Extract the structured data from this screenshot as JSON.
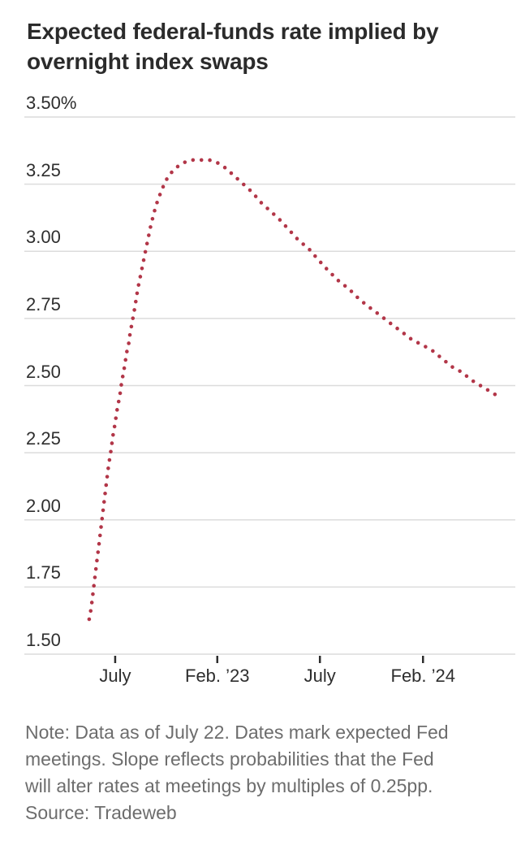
{
  "title": {
    "line1": "Expected federal-funds rate implied by",
    "line2": "overnight index swaps",
    "full": "Expected federal-funds rate implied by overnight index swaps"
  },
  "note": {
    "lines": [
      "Note: Data as of July 22. Dates mark expected Fed",
      "meetings. Slope reflects probabilities that the Fed",
      "will alter rates at meetings by multiples of 0.25pp."
    ],
    "source": "Source: Tradeweb"
  },
  "colors": {
    "background": "#ffffff",
    "line": "#b23648",
    "grid": "#dcdcdc",
    "tick": "#2e2e2e",
    "title_text": "#2b2b2b",
    "axis_text": "#2e2e2e",
    "note_text": "#6d6d6d"
  },
  "chart_data": {
    "type": "line",
    "style": "dotted",
    "title": "Expected federal-funds rate implied by overnight index swaps",
    "xlabel": "",
    "ylabel": "%",
    "ylim": [
      1.5,
      3.5
    ],
    "grid": true,
    "legend": "none",
    "y_ticks": [
      {
        "value": 3.5,
        "label": "3.50%"
      },
      {
        "value": 3.25,
        "label": "3.25"
      },
      {
        "value": 3.0,
        "label": "3.00"
      },
      {
        "value": 2.75,
        "label": "2.75"
      },
      {
        "value": 2.5,
        "label": "2.50"
      },
      {
        "value": 2.25,
        "label": "2.25"
      },
      {
        "value": 2.0,
        "label": "2.00"
      },
      {
        "value": 1.75,
        "label": "1.75"
      },
      {
        "value": 1.5,
        "label": "1.50"
      }
    ],
    "x_ticks": [
      {
        "f": 0.185,
        "label": "July"
      },
      {
        "f": 0.393,
        "label": "Feb. ’23"
      },
      {
        "f": 0.602,
        "label": "July"
      },
      {
        "f": 0.812,
        "label": "Feb. ’24"
      }
    ],
    "series": [
      {
        "name": "Expected federal-funds rate (%)",
        "color": "#b23648",
        "start_value": 1.63,
        "peak_value": 3.34,
        "end_value": 2.46,
        "points": [
          [
            0.132,
            1.63
          ],
          [
            0.136,
            1.67
          ],
          [
            0.138,
            1.7
          ],
          [
            0.14,
            1.73
          ],
          [
            0.142,
            1.76
          ],
          [
            0.144,
            1.79
          ],
          [
            0.146,
            1.82
          ],
          [
            0.148,
            1.85
          ],
          [
            0.15,
            1.88
          ],
          [
            0.152,
            1.91
          ],
          [
            0.154,
            1.94
          ],
          [
            0.156,
            1.97
          ],
          [
            0.158,
            2.0
          ],
          [
            0.16,
            2.03
          ],
          [
            0.162,
            2.06
          ],
          [
            0.164,
            2.09
          ],
          [
            0.166,
            2.12
          ],
          [
            0.168,
            2.15
          ],
          [
            0.17,
            2.18
          ],
          [
            0.172,
            2.21
          ],
          [
            0.175,
            2.24
          ],
          [
            0.178,
            2.28
          ],
          [
            0.181,
            2.32
          ],
          [
            0.185,
            2.36
          ],
          [
            0.188,
            2.4
          ],
          [
            0.192,
            2.44
          ],
          [
            0.195,
            2.47
          ],
          [
            0.198,
            2.51
          ],
          [
            0.202,
            2.55
          ],
          [
            0.205,
            2.58
          ],
          [
            0.208,
            2.62
          ],
          [
            0.212,
            2.65
          ],
          [
            0.215,
            2.69
          ],
          [
            0.218,
            2.72
          ],
          [
            0.222,
            2.76
          ],
          [
            0.225,
            2.79
          ],
          [
            0.231,
            2.86
          ],
          [
            0.24,
            2.94
          ],
          [
            0.249,
            3.02
          ],
          [
            0.258,
            3.1
          ],
          [
            0.268,
            3.17
          ],
          [
            0.28,
            3.23
          ],
          [
            0.293,
            3.28
          ],
          [
            0.308,
            3.31
          ],
          [
            0.324,
            3.33
          ],
          [
            0.342,
            3.34
          ],
          [
            0.36,
            3.34
          ],
          [
            0.377,
            3.34
          ],
          [
            0.393,
            3.33
          ],
          [
            0.41,
            3.31
          ],
          [
            0.428,
            3.28
          ],
          [
            0.446,
            3.25
          ],
          [
            0.464,
            3.22
          ],
          [
            0.483,
            3.18
          ],
          [
            0.501,
            3.15
          ],
          [
            0.519,
            3.12
          ],
          [
            0.539,
            3.08
          ],
          [
            0.559,
            3.04
          ],
          [
            0.579,
            3.01
          ],
          [
            0.598,
            2.97
          ],
          [
            0.618,
            2.93
          ],
          [
            0.64,
            2.89
          ],
          [
            0.661,
            2.86
          ],
          [
            0.683,
            2.82
          ],
          [
            0.704,
            2.79
          ],
          [
            0.726,
            2.76
          ],
          [
            0.747,
            2.73
          ],
          [
            0.769,
            2.7
          ],
          [
            0.79,
            2.67
          ],
          [
            0.812,
            2.65
          ],
          [
            0.831,
            2.63
          ],
          [
            0.851,
            2.6
          ],
          [
            0.871,
            2.57
          ],
          [
            0.891,
            2.55
          ],
          [
            0.911,
            2.52
          ],
          [
            0.929,
            2.5
          ],
          [
            0.947,
            2.48
          ],
          [
            0.965,
            2.46
          ]
        ]
      }
    ]
  }
}
